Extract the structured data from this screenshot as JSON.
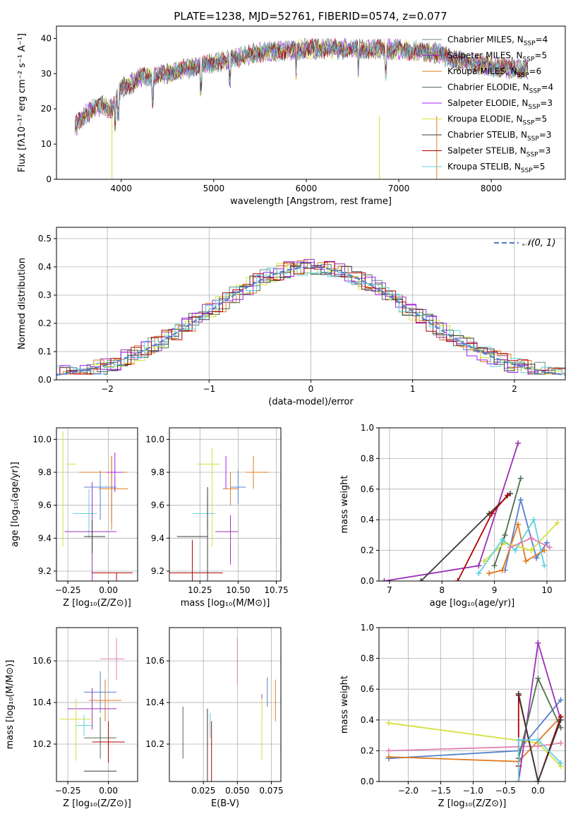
{
  "colors": [
    "#6b8e7f",
    "#9b30b8",
    "#e07b20",
    "#4f6f4f",
    "#a020f0",
    "#d4e040",
    "#3a3a3a",
    "#b00000",
    "#5fd0e0"
  ],
  "spectrum": {
    "title": "PLATE=1238, MJD=52761, FIBERID=0574, z=0.077",
    "xlabel": "wavelength [Angstrom, rest frame]",
    "ylabel": "Flux [fλ10⁻¹⁷ erg cm⁻² s⁻¹ A⁻¹]",
    "xlim": [
      3300,
      8800
    ],
    "ylim": [
      0,
      43.5
    ],
    "xticks": [
      4000,
      5000,
      6000,
      7000,
      8000
    ],
    "yticks": [
      0,
      10,
      20,
      30,
      40
    ],
    "legend": [
      {
        "label": "Chabrier MILES, N",
        "sub": "SSP",
        "tail": "=4",
        "color": "#6b8e7f"
      },
      {
        "label": "Salpeter MILES, N",
        "sub": "SSP",
        "tail": "=5",
        "color": "#9b30b8"
      },
      {
        "label": "Kroupa MILES, N",
        "sub": "SSP",
        "tail": "=6",
        "color": "#e07b20"
      },
      {
        "label": "Chabrier ELODIE, N",
        "sub": "SSP",
        "tail": "=4",
        "color": "#4f6f4f"
      },
      {
        "label": "Salpeter ELODIE, N",
        "sub": "SSP",
        "tail": "=3",
        "color": "#a020f0"
      },
      {
        "label": "Kroupa ELODIE, N",
        "sub": "SSP",
        "tail": "=5",
        "color": "#d4e040"
      },
      {
        "label": "Chabrier STELIB, N",
        "sub": "SSP",
        "tail": "=3",
        "color": "#3a3a3a"
      },
      {
        "label": "Salpeter STELIB, N",
        "sub": "SSP",
        "tail": "=3",
        "color": "#b00000"
      },
      {
        "label": "Kroupa STELIB, N",
        "sub": "SSP",
        "tail": "=5",
        "color": "#5fd0e0"
      }
    ],
    "chart_data": {
      "type": "line",
      "trend_x": [
        3500,
        3600,
        3700,
        3800,
        3900,
        4000,
        4100,
        4200,
        4300,
        4500,
        4800,
        5000,
        5500,
        6000,
        6500,
        7000,
        7400,
        7600,
        8000,
        8500
      ],
      "trend_y": [
        15,
        18,
        20,
        21,
        20,
        26,
        27,
        29,
        29,
        30,
        32,
        33,
        36,
        37,
        37,
        37,
        36,
        34,
        32,
        31
      ]
    }
  },
  "residuals": {
    "xlabel": "(data-model)/error",
    "ylabel": "Normed distribution",
    "legend_label": "𝒩(0, 1)",
    "xlim": [
      -2.5,
      2.5
    ],
    "ylim": [
      0,
      0.54
    ],
    "xticks": [
      -2,
      -1,
      0,
      1,
      2
    ],
    "yticks": [
      0.0,
      0.1,
      0.2,
      0.3,
      0.4,
      0.5
    ],
    "chart_data": {
      "type": "bar",
      "bin_width": 0.1,
      "gaussian": {
        "mu": 0,
        "sigma": 1
      }
    }
  },
  "panels": {
    "z_age": {
      "xlabel": "Z [log₁₀(Z/Z⊙)]",
      "ylabel": "age  [log₁₀(age/yr)]",
      "xlim": [
        -0.32,
        0.18
      ],
      "ylim": [
        9.14,
        10.07
      ],
      "xticks": [
        -0.25,
        0.0
      ],
      "yticks": [
        9.2,
        9.4,
        9.6,
        9.8,
        10.0
      ],
      "points": [
        {
          "x": -0.28,
          "y": 9.85,
          "xe": [
            -0.08,
            0.02
          ],
          "ye": [
            0.5,
            0.2
          ],
          "c": "#d4e040"
        },
        {
          "x": 0.02,
          "y": 9.8,
          "xe": [
            0.2,
            0.1
          ],
          "ye": [
            0.3,
            0.1
          ],
          "c": "#e07b20"
        },
        {
          "x": -0.05,
          "y": 9.71,
          "xe": [
            0.1,
            0.1
          ],
          "ye": [
            0.2,
            0.1
          ],
          "c": "#5580cc"
        },
        {
          "x": 0.02,
          "y": 9.7,
          "xe": [
            0.08,
            0.1
          ],
          "ye": [
            0.25,
            0.2
          ],
          "c": "#e07b20"
        },
        {
          "x": -0.12,
          "y": 9.55,
          "xe": [
            0.1,
            0.05
          ],
          "ye": [
            0.15,
            0.15
          ],
          "c": "#5fd0e0"
        },
        {
          "x": 0.04,
          "y": 9.8,
          "xe": [
            0.05,
            0.05
          ],
          "ye": [
            0.12,
            0.12
          ],
          "c": "#a020f0"
        },
        {
          "x": -0.1,
          "y": 9.44,
          "xe": [
            0.17,
            0.15
          ],
          "ye": [
            0.5,
            0.3
          ],
          "c": "#9b30b8"
        },
        {
          "x": -0.1,
          "y": 9.41,
          "xe": [
            0.05,
            0.08
          ],
          "ye": [
            0.1,
            0.1
          ],
          "c": "#3a3a3a"
        },
        {
          "x": 0.05,
          "y": 9.19,
          "xe": [
            0.15,
            0.1
          ],
          "ye": [
            0.3,
            0.0
          ],
          "c": "#b00000"
        }
      ]
    },
    "mass_age": {
      "xlabel": "mass [log₁₀(M/M⊙)]",
      "ylabel": "",
      "xlim": [
        10.05,
        10.78
      ],
      "ylim": [
        9.14,
        10.07
      ],
      "xticks": [
        10.25,
        10.5,
        10.75
      ],
      "yticks": [
        9.2,
        9.4,
        9.6,
        9.8,
        10.0
      ],
      "points": [
        {
          "x": 10.33,
          "y": 9.85,
          "c": "#d4e040",
          "xe": [
            0.1,
            0.05
          ],
          "ye": [
            0.5,
            0.1
          ]
        },
        {
          "x": 10.6,
          "y": 9.8,
          "c": "#e07b20",
          "xe": [
            0.05,
            0.1
          ],
          "ye": [
            0.1,
            0.1
          ]
        },
        {
          "x": 10.5,
          "y": 9.71,
          "c": "#5580cc",
          "xe": [
            0.05,
            0.05
          ],
          "ye": [
            0.1,
            0.1
          ]
        },
        {
          "x": 10.45,
          "y": 9.7,
          "c": "#e07b20",
          "xe": [
            0.05,
            0.05
          ],
          "ye": [
            0.1,
            0.1
          ]
        },
        {
          "x": 10.3,
          "y": 9.55,
          "c": "#5fd0e0",
          "xe": [
            0.1,
            0.05
          ],
          "ye": [
            0.1,
            0.1
          ]
        },
        {
          "x": 10.42,
          "y": 9.8,
          "c": "#a020f0",
          "xe": [
            0.0,
            0.0
          ],
          "ye": [
            0.1,
            0.1
          ]
        },
        {
          "x": 10.45,
          "y": 9.44,
          "c": "#9b30b8",
          "xe": [
            0.1,
            0.05
          ],
          "ye": [
            0.2,
            0.1
          ]
        },
        {
          "x": 10.3,
          "y": 9.41,
          "c": "#3a3a3a",
          "xe": [
            0.2,
            0.0
          ],
          "ye": [
            0.3,
            0.3
          ]
        },
        {
          "x": 10.2,
          "y": 9.19,
          "c": "#b00000",
          "xe": [
            0.2,
            0.2
          ],
          "ye": [
            0.3,
            0.2
          ]
        }
      ]
    },
    "z_mass": {
      "xlabel": "Z [log₁₀(Z/Z⊙)]",
      "ylabel": "mass [log₁₀(M/M⊙)]",
      "xlim": [
        -0.32,
        0.18
      ],
      "ylim": [
        10.02,
        10.76
      ],
      "xticks": [
        -0.25,
        0.0
      ],
      "yticks": [
        10.2,
        10.4,
        10.6
      ],
      "points": [
        {
          "x": 0.05,
          "y": 10.61,
          "c": "#e080b0",
          "xe": [
            0.1,
            0.05
          ],
          "ye": [
            0.1,
            0.1
          ]
        },
        {
          "x": -0.05,
          "y": 10.45,
          "c": "#5580cc",
          "xe": [
            0.1,
            0.1
          ],
          "ye": [
            0.1,
            0.1
          ]
        },
        {
          "x": -0.02,
          "y": 10.41,
          "c": "#e07b20",
          "xe": [
            0.1,
            0.1
          ],
          "ye": [
            0.1,
            0.1
          ]
        },
        {
          "x": -0.1,
          "y": 10.37,
          "c": "#9b30b8",
          "xe": [
            0.15,
            0.15
          ],
          "ye": [
            0.1,
            0.1
          ]
        },
        {
          "x": -0.2,
          "y": 10.32,
          "c": "#d4e040",
          "xe": [
            0.1,
            0.1
          ],
          "ye": [
            0.2,
            0.1
          ]
        },
        {
          "x": -0.15,
          "y": 10.29,
          "c": "#5fd0e0",
          "xe": [
            0.05,
            0.05
          ],
          "ye": [
            0.05,
            0.05
          ]
        },
        {
          "x": -0.05,
          "y": 10.23,
          "c": "#4f6f4f",
          "xe": [
            0.1,
            0.1
          ],
          "ye": [
            0.1,
            0.1
          ]
        },
        {
          "x": 0.0,
          "y": 10.21,
          "c": "#b00000",
          "xe": [
            0.1,
            0.1
          ],
          "ye": [
            0.1,
            0.1
          ]
        },
        {
          "x": -0.05,
          "y": 10.07,
          "c": "#3a3a3a",
          "xe": [
            0.1,
            0.1
          ],
          "ye": [
            0.0,
            0.0
          ]
        }
      ]
    },
    "ebv_mass": {
      "xlabel": "E(B-V)",
      "ylabel": "",
      "xlim": [
        0.0,
        0.082
      ],
      "ylim": [
        10.02,
        10.76
      ],
      "xticks": [
        0.025,
        0.05,
        0.075
      ],
      "yticks": [
        10.2,
        10.4,
        10.6
      ],
      "points": [
        {
          "x": 0.05,
          "y": 10.61,
          "c": "#e080b0",
          "ye": [
            0.12,
            0.1
          ]
        },
        {
          "x": 0.072,
          "y": 10.45,
          "c": "#5580cc",
          "ye": [
            0.07,
            0.07
          ]
        },
        {
          "x": 0.078,
          "y": 10.41,
          "c": "#e07b20",
          "ye": [
            0.1,
            0.1
          ]
        },
        {
          "x": 0.068,
          "y": 10.37,
          "c": "#9b30b8",
          "ye": [
            0.07,
            0.07
          ]
        },
        {
          "x": 0.068,
          "y": 10.32,
          "c": "#d4e040",
          "ye": [
            0.2,
            0.1
          ]
        },
        {
          "x": 0.03,
          "y": 10.29,
          "c": "#5fd0e0",
          "ye": [
            0.06,
            0.06
          ]
        },
        {
          "x": 0.01,
          "y": 10.23,
          "c": "#4f6f4f",
          "ye": [
            0.1,
            0.15
          ]
        },
        {
          "x": 0.031,
          "y": 10.21,
          "c": "#b00000",
          "ye": [
            0.2,
            0.1
          ]
        },
        {
          "x": 0.028,
          "y": 10.07,
          "c": "#3a3a3a",
          "ye": [
            0.3,
            0.3
          ]
        }
      ]
    },
    "age_weight": {
      "xlabel": "age  [log₁₀(age/yr)]",
      "ylabel": "mass weight",
      "xlim": [
        6.8,
        10.35
      ],
      "ylim": [
        0,
        1.0
      ],
      "xticks": [
        7,
        8,
        9,
        10
      ],
      "yticks": [
        0.0,
        0.2,
        0.4,
        0.6,
        0.8,
        1.0
      ],
      "series": [
        {
          "c": "#9b30b8",
          "x": [
            6.9,
            8.7,
            9.45
          ],
          "y": [
            0.0,
            0.1,
            0.9
          ]
        },
        {
          "c": "#3a3a3a",
          "x": [
            7.6,
            8.9,
            9.3
          ],
          "y": [
            0.0,
            0.44,
            0.57
          ]
        },
        {
          "c": "#b00000",
          "x": [
            8.3,
            8.95,
            9.25
          ],
          "y": [
            0.0,
            0.44,
            0.56
          ]
        },
        {
          "c": "#4f6f4f",
          "x": [
            9.0,
            9.2,
            9.5
          ],
          "y": [
            0.1,
            0.3,
            0.67
          ]
        },
        {
          "c": "#5580cc",
          "x": [
            9.2,
            9.5,
            9.8,
            10.0
          ],
          "y": [
            0.07,
            0.53,
            0.15,
            0.25
          ]
        },
        {
          "c": "#e07b20",
          "x": [
            8.9,
            9.15,
            9.45,
            9.6,
            9.95
          ],
          "y": [
            0.05,
            0.07,
            0.37,
            0.13,
            0.2
          ]
        },
        {
          "c": "#d4e040",
          "x": [
            8.8,
            9.2,
            9.7,
            10.2
          ],
          "y": [
            0.13,
            0.25,
            0.2,
            0.38
          ]
        },
        {
          "c": "#5fd0e0",
          "x": [
            8.7,
            9.15,
            9.4,
            9.75,
            9.95
          ],
          "y": [
            0.05,
            0.27,
            0.2,
            0.4,
            0.1
          ]
        },
        {
          "c": "#e080b0",
          "x": [
            9.3,
            9.7,
            10.05
          ],
          "y": [
            0.22,
            0.28,
            0.22
          ]
        }
      ]
    },
    "z_weight": {
      "xlabel": "Z [log₁₀(Z/Z⊙)]",
      "ylabel": "mass weight",
      "xlim": [
        -2.45,
        0.42
      ],
      "ylim": [
        0,
        1.0
      ],
      "xticks": [
        -2.0,
        -1.5,
        -1.0,
        -0.5,
        0.0
      ],
      "yticks": [
        0.0,
        0.2,
        0.4,
        0.6,
        0.8,
        1.0
      ],
      "series": [
        {
          "c": "#5580cc",
          "x": [
            -2.3,
            -0.3,
            0.35
          ],
          "y": [
            0.15,
            0.2,
            0.53
          ]
        },
        {
          "c": "#d4e040",
          "x": [
            -2.3,
            0.0,
            0.35
          ],
          "y": [
            0.38,
            0.25,
            0.1
          ]
        },
        {
          "c": "#e07b20",
          "x": [
            -2.3,
            -0.3,
            0.35
          ],
          "y": [
            0.16,
            0.13,
            0.42
          ]
        },
        {
          "c": "#e080b0",
          "x": [
            -2.3,
            0.0,
            0.35
          ],
          "y": [
            0.2,
            0.23,
            0.25
          ]
        },
        {
          "c": "#9b30b8",
          "x": [
            -0.3,
            0.0,
            0.35
          ],
          "y": [
            0.0,
            0.9,
            0.4
          ]
        },
        {
          "c": "#4f6f4f",
          "x": [
            -0.3,
            0.0,
            0.35
          ],
          "y": [
            0.15,
            0.67,
            0.35
          ]
        },
        {
          "c": "#b00000",
          "x": [
            -0.3,
            -0.3,
            0.0,
            0.35
          ],
          "y": [
            0.1,
            0.56,
            0.0,
            0.42
          ]
        },
        {
          "c": "#3a3a3a",
          "x": [
            -0.3,
            0.0,
            0.35
          ],
          "y": [
            0.57,
            0.0,
            0.4
          ]
        },
        {
          "c": "#5fd0e0",
          "x": [
            -0.3,
            -0.3,
            0.0,
            0.35
          ],
          "y": [
            0.0,
            0.27,
            0.27,
            0.12
          ]
        }
      ]
    }
  }
}
